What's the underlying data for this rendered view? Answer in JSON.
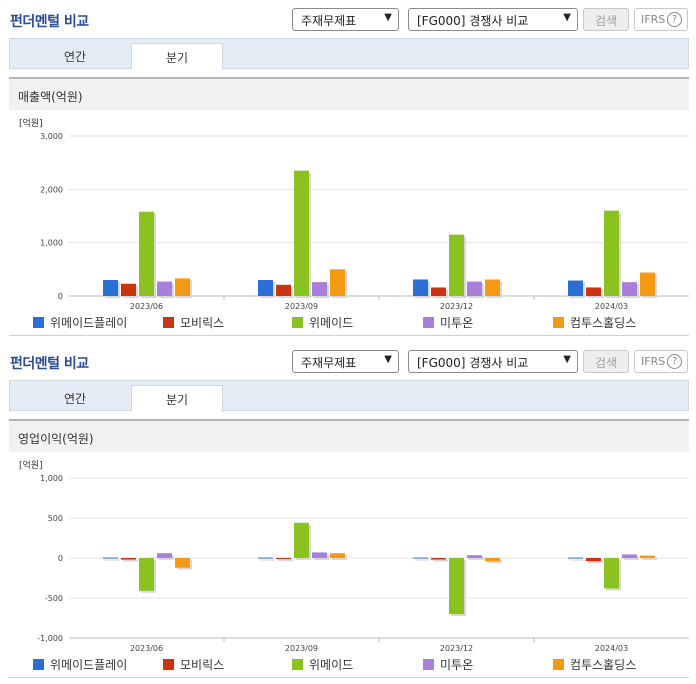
{
  "sections": [
    {
      "title": "펀더멘털 비교",
      "select_report": "주재무제표",
      "select_compare": "[FG000] 경쟁사 비교",
      "search_label": "검색",
      "ifrs_label": "IFRS",
      "help_glyph": "?",
      "tabs": [
        "연간",
        "분기"
      ],
      "active_tab": "분기",
      "chart_title": "매출액(억원)"
    },
    {
      "title": "펀더멘털 비교",
      "select_report": "주재무제표",
      "select_compare": "[FG000] 경쟁사 비교",
      "search_label": "검색",
      "ifrs_label": "IFRS",
      "help_glyph": "?",
      "tabs": [
        "연간",
        "분기"
      ],
      "active_tab": "분기",
      "chart_title": "영업이익(억원)"
    }
  ],
  "chart_data": [
    {
      "type": "bar",
      "title": "매출액(억원)",
      "unit_label": "[억원]",
      "categories": [
        "2023/06",
        "2023/09",
        "2023/12",
        "2024/03"
      ],
      "ylim": [
        0,
        3000
      ],
      "yticks": [
        0,
        1000,
        2000,
        3000
      ],
      "ytick_labels": [
        "0",
        "1,000",
        "2,000",
        "3,000"
      ],
      "grid": true,
      "legend_position": "bottom",
      "series": [
        {
          "name": "위메이드플레이",
          "color": "#2b6fd6",
          "values": [
            300,
            300,
            310,
            290
          ]
        },
        {
          "name": "모비릭스",
          "color": "#cc3311",
          "values": [
            230,
            210,
            160,
            160
          ]
        },
        {
          "name": "위메이드",
          "color": "#8cc21f",
          "values": [
            1580,
            2350,
            1150,
            1600
          ]
        },
        {
          "name": "미투온",
          "color": "#a87fdb",
          "values": [
            270,
            260,
            270,
            260
          ]
        },
        {
          "name": "컴투스홀딩스",
          "color": "#f39a12",
          "values": [
            330,
            500,
            310,
            440
          ]
        }
      ]
    },
    {
      "type": "bar",
      "title": "영업이익(억원)",
      "unit_label": "[억원]",
      "categories": [
        "2023/06",
        "2023/09",
        "2023/12",
        "2024/03"
      ],
      "ylim": [
        -1000,
        1000
      ],
      "yticks": [
        -1000,
        -500,
        0,
        500,
        1000
      ],
      "ytick_labels": [
        "-1,000",
        "-500",
        "0",
        "500",
        "1,000"
      ],
      "grid": true,
      "legend_position": "bottom",
      "series": [
        {
          "name": "위메이드플레이",
          "color": "#2b6fd6",
          "values": [
            5,
            5,
            5,
            5
          ]
        },
        {
          "name": "모비릭스",
          "color": "#cc3311",
          "values": [
            -20,
            -15,
            -20,
            -40
          ]
        },
        {
          "name": "위메이드",
          "color": "#8cc21f",
          "values": [
            -410,
            440,
            -700,
            -380
          ]
        },
        {
          "name": "미투온",
          "color": "#a87fdb",
          "values": [
            60,
            70,
            35,
            45
          ]
        },
        {
          "name": "컴투스홀딩스",
          "color": "#f39a12",
          "values": [
            -120,
            60,
            -40,
            30
          ]
        }
      ]
    }
  ]
}
